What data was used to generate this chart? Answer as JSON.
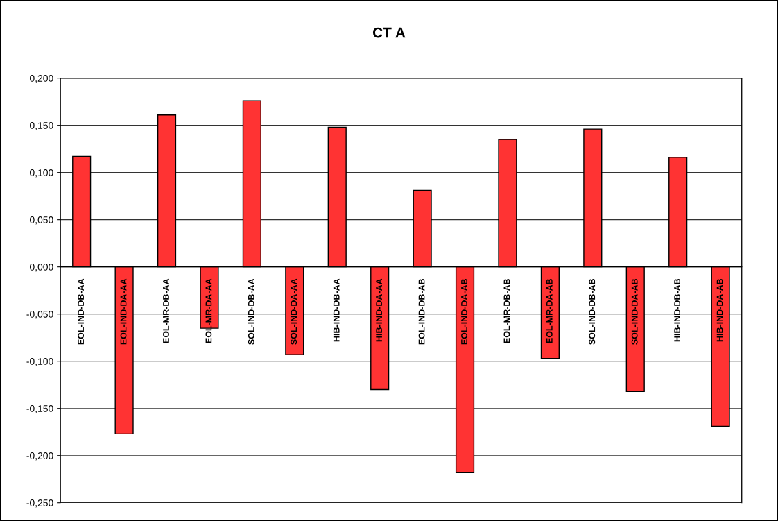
{
  "chart_data": {
    "type": "bar",
    "title": "CT A",
    "categories": [
      "EOL-IND-DB-AA",
      "EOL-IND-DA-AA",
      "EOL-MR-DB-AA",
      "EOL-MR-DA-AA",
      "SOL-IND-DB-AA",
      "SOL-IND-DA-AA",
      "HIB-IND-DB-AA",
      "HIB-IND-DA-AA",
      "EOL-IND-DB-AB",
      "EOL-IND-DA-AB",
      "EOL-MR-DB-AB",
      "EOL-MR-DA-AB",
      "SOL-IND-DB-AB",
      "SOL-IND-DA-AB",
      "HIB-IND-DB-AB",
      "HIB-IND-DA-AB"
    ],
    "values": [
      0.117,
      -0.177,
      0.161,
      -0.065,
      0.176,
      -0.093,
      0.148,
      -0.13,
      0.081,
      -0.218,
      0.135,
      -0.097,
      0.146,
      -0.132,
      0.116,
      -0.169
    ],
    "color": "#ff3333",
    "ylim": [
      -0.25,
      0.2
    ],
    "yticks": [
      {
        "value": -0.25,
        "label": "-0,250"
      },
      {
        "value": -0.2,
        "label": "-0,200"
      },
      {
        "value": -0.15,
        "label": "-0,150"
      },
      {
        "value": -0.1,
        "label": "-0,100"
      },
      {
        "value": -0.05,
        "label": "-0,050"
      },
      {
        "value": 0,
        "label": "0,000"
      },
      {
        "value": 0.05,
        "label": "0,050"
      },
      {
        "value": 0.1,
        "label": "0,100"
      },
      {
        "value": 0.15,
        "label": "0,150"
      },
      {
        "value": 0.2,
        "label": "0,200"
      }
    ],
    "grid": "y",
    "legend": false
  }
}
